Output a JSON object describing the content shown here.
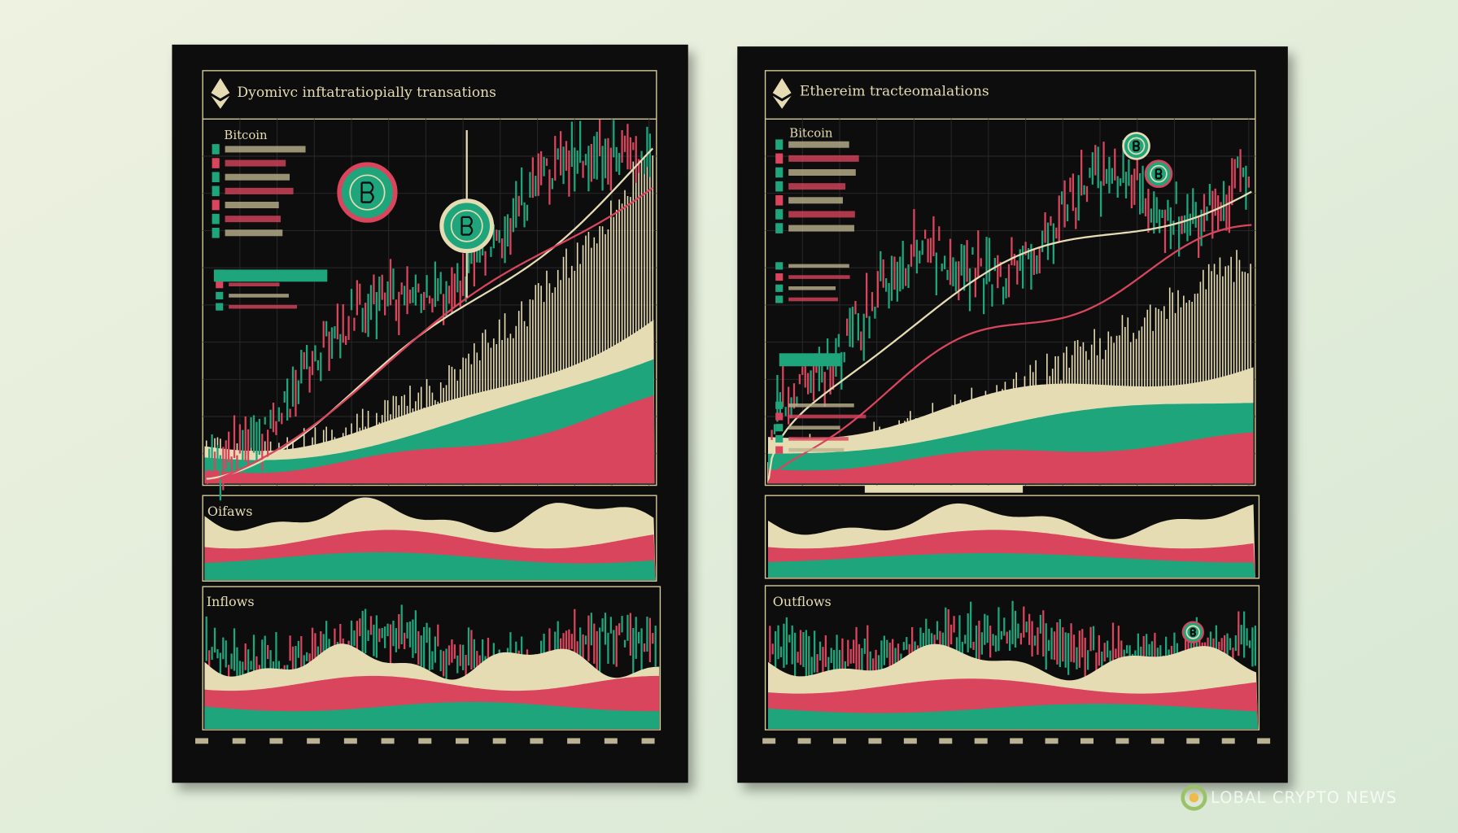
{
  "left_panel": {
    "title": "Dyomivc inftatratiopially transations",
    "legend_title": "Bitcoin",
    "middle_label": "Oifaws",
    "bottom_label": "Inflows"
  },
  "right_panel": {
    "title": "Ethereim tracteomalations",
    "legend_title": "Bitcoin",
    "bottom_label": "Outflows"
  },
  "watermark": "LOBAL CRYPTO NEWS"
}
